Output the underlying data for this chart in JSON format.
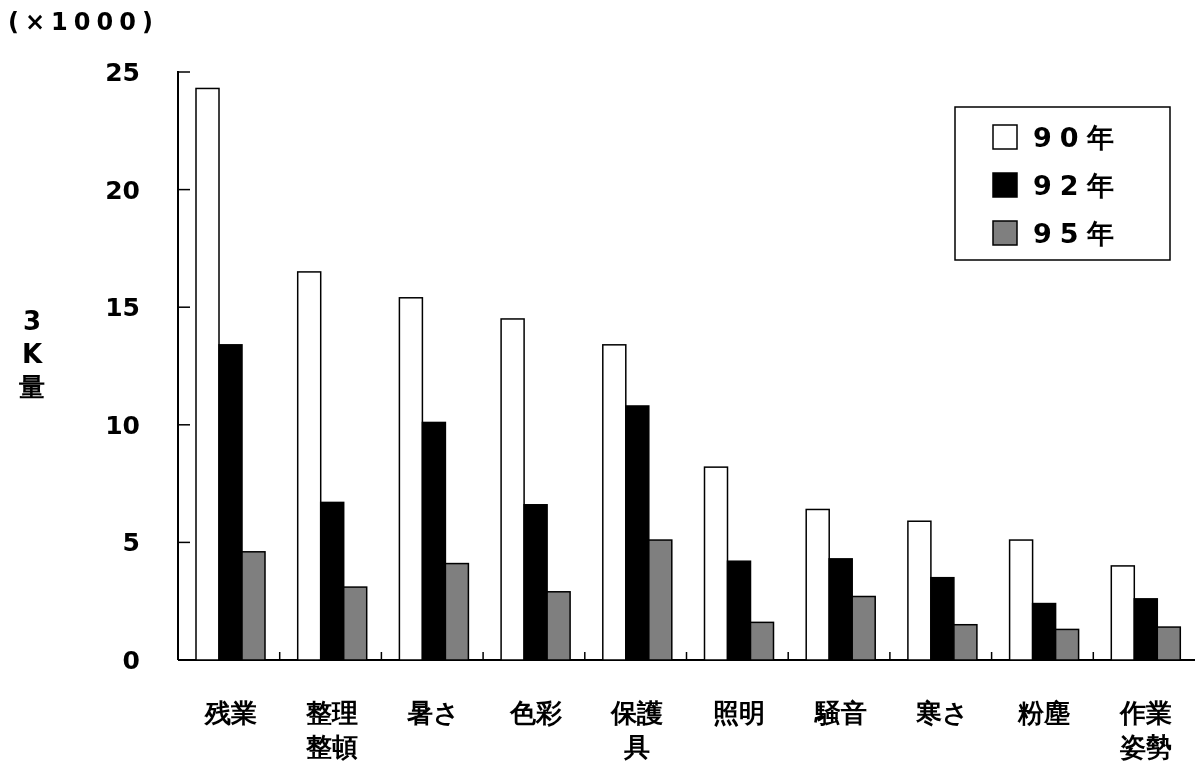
{
  "chart_data": {
    "type": "bar",
    "categories": [
      "残業",
      "整理整頓",
      "暑さ",
      "色彩",
      "保護具",
      "照明",
      "騒音",
      "寒さ",
      "粉塵",
      "作業姿勢"
    ],
    "series": [
      {
        "name": "90年",
        "color": "#ffffff",
        "values": [
          24.3,
          16.5,
          15.4,
          14.5,
          13.4,
          8.2,
          6.4,
          5.9,
          5.1,
          4.0
        ]
      },
      {
        "name": "92年",
        "color": "#000000",
        "values": [
          13.4,
          6.7,
          10.1,
          6.6,
          10.8,
          4.2,
          4.3,
          3.5,
          2.4,
          2.6
        ]
      },
      {
        "name": "95年",
        "color": "#7f7f7f",
        "values": [
          4.6,
          3.1,
          4.1,
          2.9,
          5.1,
          1.6,
          2.7,
          1.5,
          1.3,
          1.4
        ]
      }
    ],
    "ylabel": "3K量",
    "annotations": [
      "(×1000)"
    ],
    "ylim": [
      0,
      25
    ],
    "yticks": [
      0,
      5,
      10,
      15,
      20,
      25
    ],
    "legend": "top right"
  }
}
